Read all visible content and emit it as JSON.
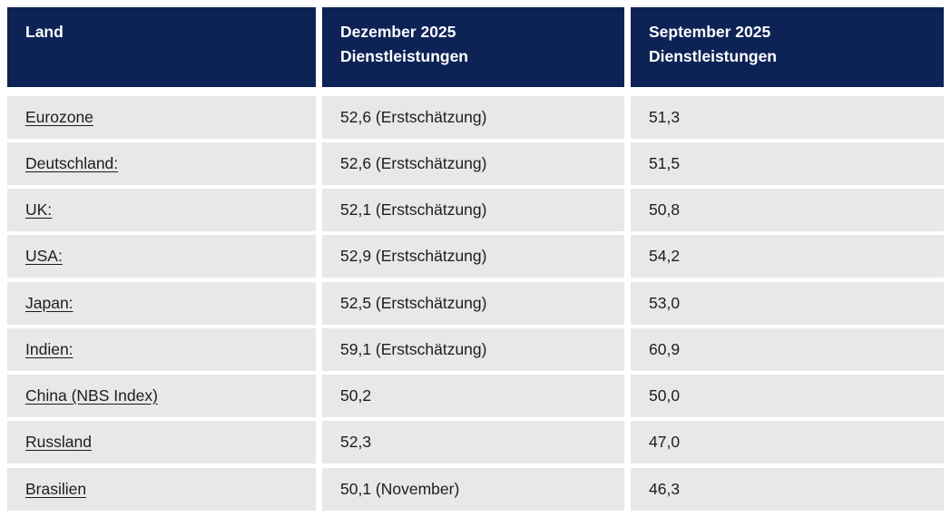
{
  "colors": {
    "header_bg": "#0d2356",
    "header_text": "#ffffff",
    "row_bg": "#e8e8e8",
    "cell_text": "#1d1d1d"
  },
  "table": {
    "columns": [
      {
        "title": "Land",
        "subtitle": ""
      },
      {
        "title": "Dezember 2025",
        "subtitle": "Dienstleistungen"
      },
      {
        "title": "September 2025",
        "subtitle": "Dienstleistungen"
      }
    ],
    "rows": [
      {
        "land": "Eurozone",
        "dezember": "52,6 (Erstschätzung)",
        "september": "51,3",
        "spacer_before": false
      },
      {
        "land": "Deutschland:",
        "dezember": "52,6 (Erstschätzung)",
        "september": "51,5",
        "spacer_before": false
      },
      {
        "land": "UK:",
        "dezember": "52,1 (Erstschätzung)",
        "september": "50,8",
        "spacer_before": false
      },
      {
        "land": "USA:",
        "dezember": "52,9 (Erstschätzung)",
        "september": "54,2",
        "spacer_before": false
      },
      {
        "land": "Japan:",
        "dezember": "52,5 (Erstschätzung)",
        "september": "53,0",
        "spacer_before": true
      },
      {
        "land": "Indien:",
        "dezember": "59,1 (Erstschätzung)",
        "september": "60,9",
        "spacer_before": false
      },
      {
        "land": "China (NBS Index)",
        "dezember": "50,2",
        "september": "50,0",
        "spacer_before": false
      },
      {
        "land": "Russland",
        "dezember": "52,3",
        "september": "47,0",
        "spacer_before": false
      },
      {
        "land": "Brasilien",
        "dezember": "50,1 (November)",
        "september": "46,3",
        "spacer_before": true
      }
    ]
  }
}
